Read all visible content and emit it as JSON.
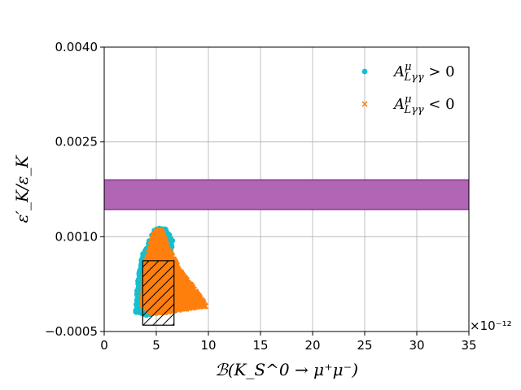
{
  "chart_data": {
    "type": "scatter",
    "title": "",
    "xlabel": "ℬ(K_S^0 → μ⁺μ⁻)",
    "ylabel": "ε′_K/ε_K",
    "x_offset_label": "×10⁻¹²",
    "xlim": [
      0,
      35
    ],
    "ylim": [
      -0.0005,
      0.004
    ],
    "x_ticks": [
      0,
      5,
      10,
      15,
      20,
      25,
      30,
      35
    ],
    "x_tick_labels": [
      "0",
      "5",
      "10",
      "15",
      "20",
      "25",
      "30",
      "35"
    ],
    "y_ticks": [
      -0.0005,
      0.001,
      0.0025,
      0.004
    ],
    "y_tick_labels": [
      "−0.0005",
      "0.0010",
      "0.0025",
      "0.0040"
    ],
    "grid": true,
    "legend_placement": "top-right",
    "colors": {
      "positive": "#17becf",
      "negative": "#ff7f0e",
      "band_fill": "#b065b5",
      "band_edge": "#7b1f82",
      "box_edge": "#000000"
    },
    "series": [
      {
        "name": "A^μ_{Lγγ} > 0",
        "legend_main": "A",
        "legend_sup": "μ",
        "legend_sub": "Lγγ",
        "legend_rel": " > 0",
        "marker": "circle",
        "region": [
          [
            3.0,
            -0.0002
          ],
          [
            3.2,
            0.0003
          ],
          [
            3.6,
            0.0007
          ],
          [
            4.2,
            0.0009
          ],
          [
            4.9,
            0.00115
          ],
          [
            5.8,
            0.00115
          ],
          [
            6.6,
            0.00095
          ],
          [
            6.2,
            0.0004
          ],
          [
            5.6,
            -0.0001
          ],
          [
            4.2,
            -0.00025
          ]
        ]
      },
      {
        "name": "A^μ_{Lγγ} < 0",
        "legend_main": "A",
        "legend_sup": "μ",
        "legend_sub": "Lγγ",
        "legend_rel": " < 0",
        "marker": "x",
        "region": [
          [
            3.6,
            -0.0001
          ],
          [
            3.8,
            0.0004
          ],
          [
            4.3,
            0.0008
          ],
          [
            4.9,
            0.0011
          ],
          [
            5.5,
            0.00112
          ],
          [
            6.2,
            0.0008
          ],
          [
            7.3,
            0.00045
          ],
          [
            8.6,
            0.00018
          ],
          [
            9.8,
            -0.0001
          ],
          [
            7.6,
            -0.00015
          ],
          [
            5.8,
            -0.0002
          ],
          [
            4.4,
            -0.00022
          ]
        ]
      }
    ],
    "bands": [
      {
        "type": "horizontal_band",
        "y_range": [
          0.00143,
          0.0019
        ]
      }
    ],
    "boxes": [
      {
        "type": "hatched_box",
        "x_range": [
          3.7,
          6.7
        ],
        "y_range": [
          -0.0004,
          0.00062
        ]
      }
    ]
  }
}
